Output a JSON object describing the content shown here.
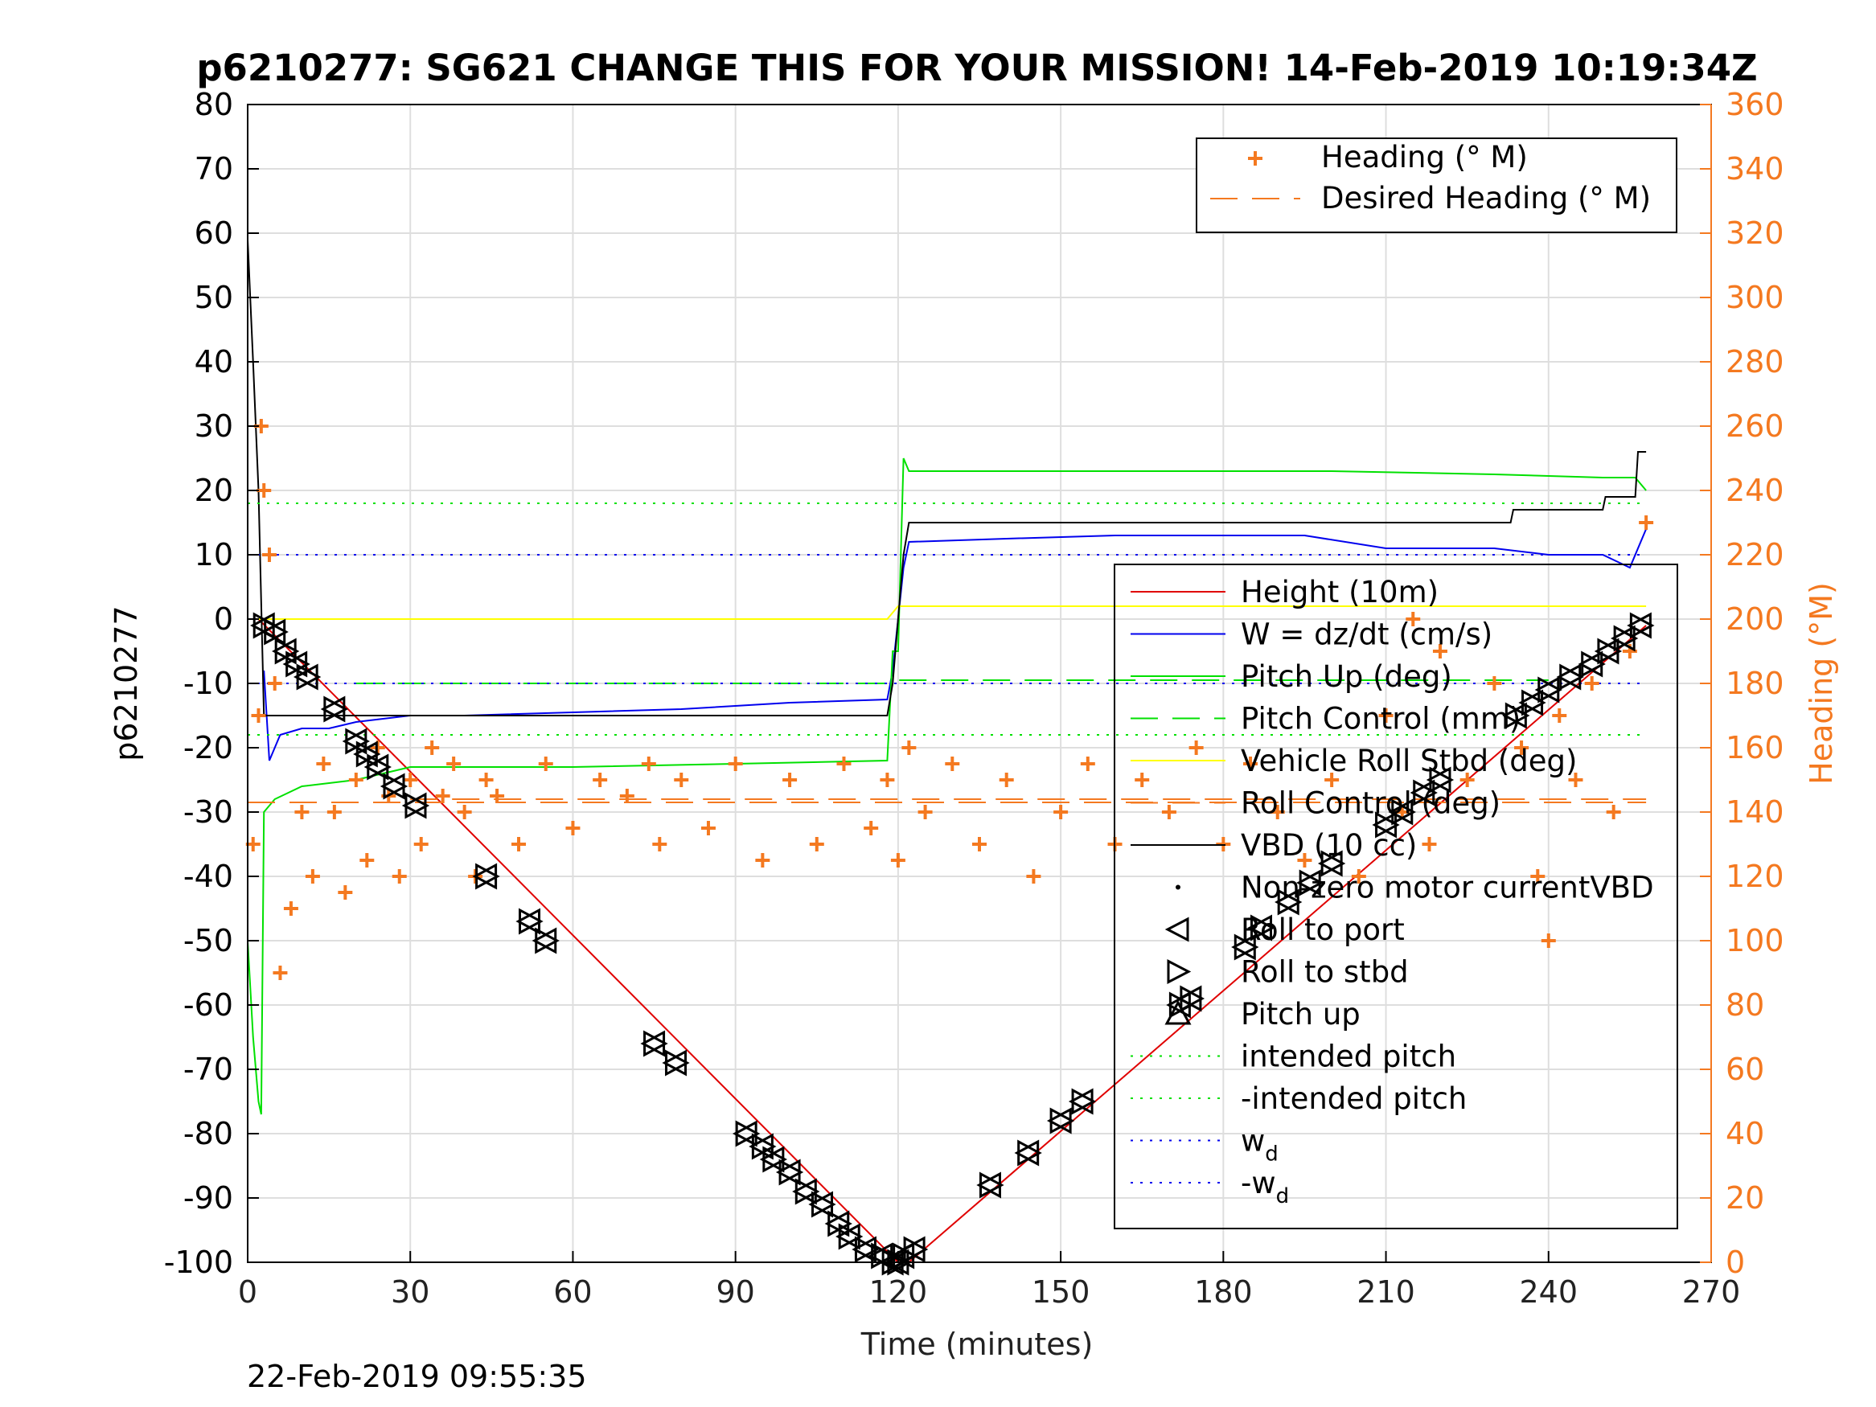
{
  "chart_data": {
    "type": "line",
    "title": "p6210277: SG621 CHANGE THIS FOR YOUR MISSION! 14-Feb-2019 10:19:34Z",
    "xlabel": "Time (minutes)",
    "ylabel": "p6210277",
    "y2label": "Heading (°M)",
    "xlim": [
      0,
      270
    ],
    "ylim": [
      -100,
      80
    ],
    "y2lim": [
      0,
      360
    ],
    "xticks": [
      0,
      30,
      60,
      90,
      120,
      150,
      180,
      210,
      240,
      270
    ],
    "yticks": [
      80,
      70,
      60,
      50,
      40,
      30,
      20,
      10,
      0,
      -10,
      -20,
      -30,
      -40,
      -50,
      -60,
      -70,
      -80,
      -90,
      -100
    ],
    "y2ticks": [
      360,
      340,
      320,
      300,
      280,
      260,
      240,
      220,
      200,
      180,
      160,
      140,
      120,
      100,
      80,
      60,
      40,
      20,
      0
    ],
    "grid": true,
    "footer": "22-Feb-2019 09:55:35",
    "colors": {
      "heading": "#f47920",
      "height": "#e00000",
      "w": "#0000ee",
      "pitch": "#00e000",
      "roll": "#ffff00",
      "vbd": "#000000",
      "y2axis": "#f47920"
    },
    "legend_heading": {
      "placement": "top-right",
      "entries": [
        "Heading (° M)",
        "Desired Heading (° M)"
      ]
    },
    "legend_main": {
      "placement": "right",
      "entries": [
        "Height (10m)",
        "W = dz/dt (cm/s)",
        "Pitch Up (deg)",
        "Pitch Control (mm)",
        "Vehicle Roll Stbd (deg)",
        "Roll Control (deg)",
        "VBD (10 cc)",
        "Non-zero motor currentVBD",
        "Roll to port",
        "Roll to stbd",
        "Pitch up",
        "intended pitch",
        "-intended pitch",
        "w",
        "-w"
      ],
      "subscript": "d"
    },
    "series": [
      {
        "name": "Height (10m)",
        "axis": "left",
        "x": [
          2,
          120,
          122,
          258
        ],
        "y": [
          0,
          -100,
          -100,
          -1
        ]
      },
      {
        "name": "W = dz/dt (cm/s)",
        "axis": "left",
        "x": [
          3,
          4,
          6,
          10,
          15,
          20,
          30,
          40,
          60,
          80,
          100,
          118,
          119,
          121,
          122,
          140,
          160,
          180,
          195,
          210,
          230,
          240,
          250,
          255,
          258
        ],
        "y": [
          -8,
          -22,
          -18,
          -17,
          -17,
          -16,
          -15,
          -15,
          -14.5,
          -14,
          -13,
          -12.5,
          -8,
          8,
          12,
          12.5,
          13,
          13,
          13,
          11,
          11,
          10,
          10,
          8,
          14
        ]
      },
      {
        "name": "Pitch Up (deg)",
        "axis": "left",
        "x": [
          0,
          1,
          2,
          2.5,
          3,
          5,
          10,
          20,
          30,
          60,
          90,
          118,
          119,
          120,
          121,
          122,
          150,
          180,
          200,
          230,
          250,
          256,
          258
        ],
        "y": [
          -50,
          -65,
          -75,
          -77,
          -30,
          -28,
          -26,
          -25,
          -23,
          -23,
          -22.5,
          -22,
          -5,
          -5,
          25,
          23,
          23,
          23,
          23,
          22.5,
          22,
          22,
          20
        ]
      },
      {
        "name": "Pitch Control (mm)",
        "axis": "left",
        "x": [
          20,
          118,
          120,
          240
        ],
        "y": [
          -10,
          -10,
          -9.5,
          -9.5
        ]
      },
      {
        "name": "Vehicle Roll Stbd (deg)",
        "axis": "left",
        "x": [
          0,
          118,
          120,
          258
        ],
        "y": [
          0,
          0,
          2,
          2
        ]
      },
      {
        "name": "Roll Control (deg)",
        "axis": "left",
        "x": [
          30,
          120,
          170,
          258
        ],
        "y": [
          -28,
          -28,
          -28,
          -28
        ]
      },
      {
        "name": "VBD (10 cc)",
        "axis": "left",
        "x": [
          0,
          1,
          2,
          3,
          20,
          118,
          119,
          120,
          121,
          122,
          150,
          233,
          233.5,
          250,
          250.5,
          256,
          256.5,
          258
        ],
        "y": [
          59,
          40,
          20,
          -15,
          -15,
          -15,
          -10,
          0,
          10,
          15,
          15,
          15,
          17,
          17,
          19,
          19,
          26,
          26
        ]
      },
      {
        "name": "intended pitch",
        "axis": "left",
        "x": [
          0,
          258
        ],
        "y": [
          18,
          18
        ]
      },
      {
        "name": "-intended pitch",
        "axis": "left",
        "x": [
          0,
          258
        ],
        "y": [
          -18,
          -18
        ]
      },
      {
        "name": "w",
        "axis": "left",
        "x": [
          0,
          258
        ],
        "y": [
          10,
          10
        ]
      },
      {
        "name": "-w",
        "axis": "left",
        "x": [
          0,
          258
        ],
        "y": [
          -10,
          -10
        ]
      },
      {
        "name": "Heading (° M)",
        "axis": "right",
        "x": [
          1,
          2,
          2.5,
          3,
          4,
          5,
          6,
          8,
          10,
          12,
          14,
          16,
          18,
          20,
          22,
          24,
          26,
          28,
          30,
          32,
          34,
          36,
          38,
          40,
          42,
          44,
          46,
          50,
          55,
          60,
          65,
          70,
          74,
          76,
          80,
          85,
          90,
          95,
          100,
          105,
          110,
          115,
          118,
          120,
          122,
          125,
          130,
          135,
          140,
          145,
          150,
          155,
          160,
          165,
          170,
          175,
          180,
          185,
          190,
          195,
          200,
          205,
          210,
          213,
          215,
          218,
          220,
          225,
          230,
          235,
          238,
          240,
          242,
          245,
          248,
          252,
          255,
          258
        ],
        "y": [
          130,
          170,
          260,
          240,
          220,
          180,
          90,
          110,
          140,
          120,
          155,
          140,
          115,
          150,
          125,
          160,
          145,
          120,
          150,
          130,
          160,
          145,
          155,
          140,
          120,
          150,
          145,
          130,
          155,
          135,
          150,
          145,
          155,
          130,
          150,
          135,
          155,
          125,
          150,
          130,
          155,
          135,
          150,
          125,
          160,
          140,
          155,
          130,
          150,
          120,
          140,
          155,
          130,
          150,
          140,
          160,
          130,
          155,
          140,
          125,
          150,
          120,
          170,
          140,
          200,
          130,
          190,
          150,
          180,
          160,
          120,
          100,
          170,
          150,
          180,
          140,
          190,
          230
        ]
      },
      {
        "name": "Desired Heading (° M)",
        "axis": "right",
        "x": [
          0,
          258
        ],
        "y": [
          143,
          143
        ]
      },
      {
        "name": "Roll to port / Roll to stbd / Pitch up",
        "axis": "left",
        "x": [
          3,
          5,
          7,
          9,
          11,
          16,
          20,
          22,
          24,
          27,
          31,
          44,
          52,
          55,
          75,
          79,
          92,
          95,
          97,
          100,
          103,
          106,
          109,
          111,
          114,
          117,
          119,
          120,
          121,
          123,
          137,
          144,
          150,
          154,
          172,
          174,
          184,
          187,
          192,
          196,
          200,
          210,
          213,
          217,
          220,
          234,
          237,
          240,
          244,
          248,
          251,
          254,
          257
        ],
        "y": [
          -1,
          -2,
          -5,
          -7,
          -9,
          -14,
          -19,
          -21,
          -23,
          -26,
          -29,
          -40,
          -47,
          -50,
          -66,
          -69,
          -80,
          -82,
          -84,
          -86,
          -89,
          -91,
          -94,
          -96,
          -98,
          -99,
          -100,
          -100,
          -99,
          -98,
          -88,
          -83,
          -78,
          -75,
          -60,
          -59,
          -51,
          -48,
          -44,
          -41,
          -38,
          -32,
          -30,
          -27,
          -25,
          -15,
          -13,
          -11,
          -9,
          -7,
          -5,
          -3,
          -1
        ]
      }
    ]
  }
}
